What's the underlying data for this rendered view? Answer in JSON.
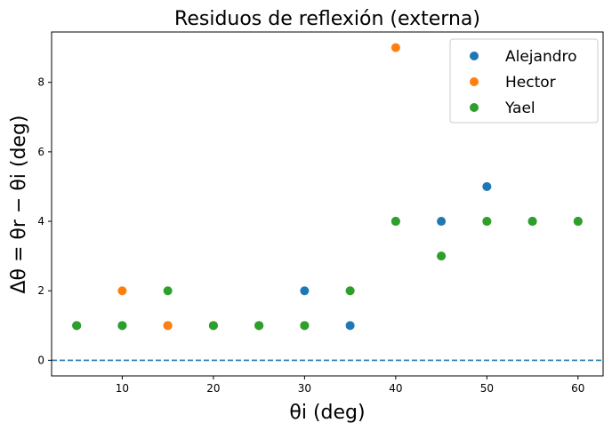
{
  "chart_data": {
    "type": "scatter",
    "title": "Residuos de reflexión (externa)",
    "xlabel": "θi (deg)",
    "ylabel": "Δθ = θr − θi (deg)",
    "xlim": [
      2.25,
      62.75
    ],
    "ylim": [
      -0.45,
      9.45
    ],
    "xticks": [
      10,
      20,
      30,
      40,
      50,
      60
    ],
    "yticks": [
      0,
      2,
      4,
      6,
      8
    ],
    "grid": false,
    "legend_position": "top-right",
    "reference_line": {
      "y": 0,
      "style": "dashed",
      "color": "#1f77b4"
    },
    "series": [
      {
        "name": "Alejandro",
        "color": "#1f77b4",
        "x": [
          5,
          10,
          15,
          20,
          25,
          30,
          35,
          40,
          45,
          50,
          55,
          60
        ],
        "y": [
          1,
          1,
          1,
          1,
          1,
          2,
          1,
          4,
          4,
          5,
          4,
          4
        ]
      },
      {
        "name": "Hector",
        "color": "#ff7f0e",
        "x": [
          5,
          10,
          15,
          20,
          25,
          30,
          35,
          40,
          45,
          50,
          55,
          60
        ],
        "y": [
          1,
          2,
          1,
          1,
          1,
          1,
          2,
          9,
          3,
          4,
          4,
          4
        ]
      },
      {
        "name": "Yael",
        "color": "#2ca02c",
        "x": [
          5,
          10,
          15,
          20,
          25,
          30,
          35,
          40,
          45,
          50,
          55,
          60
        ],
        "y": [
          1,
          1,
          2,
          1,
          1,
          1,
          2,
          4,
          3,
          4,
          4,
          4
        ]
      }
    ]
  }
}
